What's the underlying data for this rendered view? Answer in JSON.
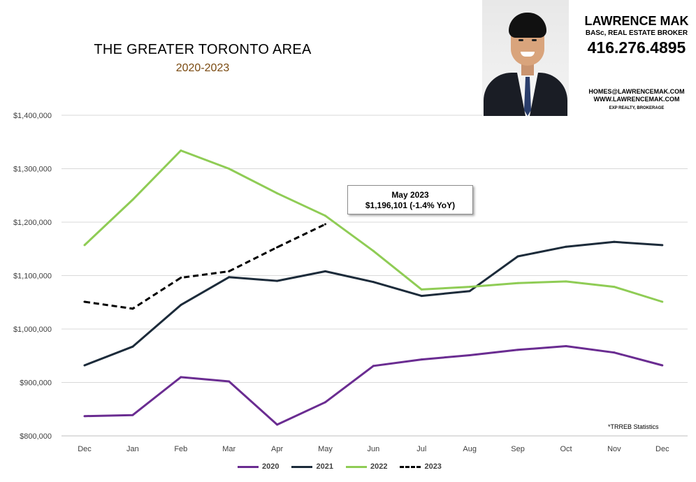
{
  "title": "THE GREATER TORONTO AREA",
  "subtitle": "2020-2023",
  "agent": {
    "name": "LAWRENCE MAK",
    "credentials": "BASc, REAL ESTATE BROKER",
    "phone": "416.276.4895",
    "email": "HOMES@LAWRENCEMAK.COM",
    "website": "WWW.LAWRENCEMAK.COM",
    "brokerage": "EXP REALTY, BROKERAGE"
  },
  "callout": {
    "line1": "May 2023",
    "line2": "$1,196,101 (-1.4% YoY)"
  },
  "source_note": "*TRREB Statistics",
  "colors": {
    "2020": "#6a2c91",
    "2021": "#1c2b3a",
    "2022": "#8fcc55",
    "2023": "#000000",
    "grid": "#d9d9d9"
  },
  "chart_data": {
    "type": "line",
    "title": "THE GREATER TORONTO AREA",
    "subtitle": "2020-2023",
    "categories": [
      "Dec",
      "Jan",
      "Feb",
      "Mar",
      "Apr",
      "May",
      "Jun",
      "Jul",
      "Aug",
      "Sep",
      "Oct",
      "Nov",
      "Dec"
    ],
    "ylim": [
      800000,
      1400000
    ],
    "yticks": [
      800000,
      900000,
      1000000,
      1100000,
      1200000,
      1300000,
      1400000
    ],
    "ytick_labels": [
      "$800,000",
      "$900,000",
      "$1,000,000",
      "$1,100,000",
      "$1,200,000",
      "$1,300,000",
      "$1,400,000"
    ],
    "grid": true,
    "legend_position": "bottom",
    "series": [
      {
        "name": "2020",
        "style": "solid",
        "values": [
          837000,
          839000,
          910000,
          902000,
          821000,
          863000,
          931000,
          943000,
          951000,
          961000,
          968000,
          956000,
          932000
        ]
      },
      {
        "name": "2021",
        "style": "solid",
        "values": [
          932000,
          967000,
          1045000,
          1097000,
          1090000,
          1108000,
          1088000,
          1062000,
          1071000,
          1136000,
          1154000,
          1163000,
          1157000
        ]
      },
      {
        "name": "2022",
        "style": "solid",
        "values": [
          1157000,
          1242000,
          1334000,
          1300000,
          1254000,
          1212000,
          1146000,
          1074000,
          1079000,
          1086000,
          1089000,
          1079000,
          1051000
        ]
      },
      {
        "name": "2023",
        "style": "dashed",
        "values": [
          1051000,
          1038000,
          1096000,
          1108000,
          1153000,
          1196101,
          null,
          null,
          null,
          null,
          null,
          null,
          null
        ]
      }
    ]
  }
}
